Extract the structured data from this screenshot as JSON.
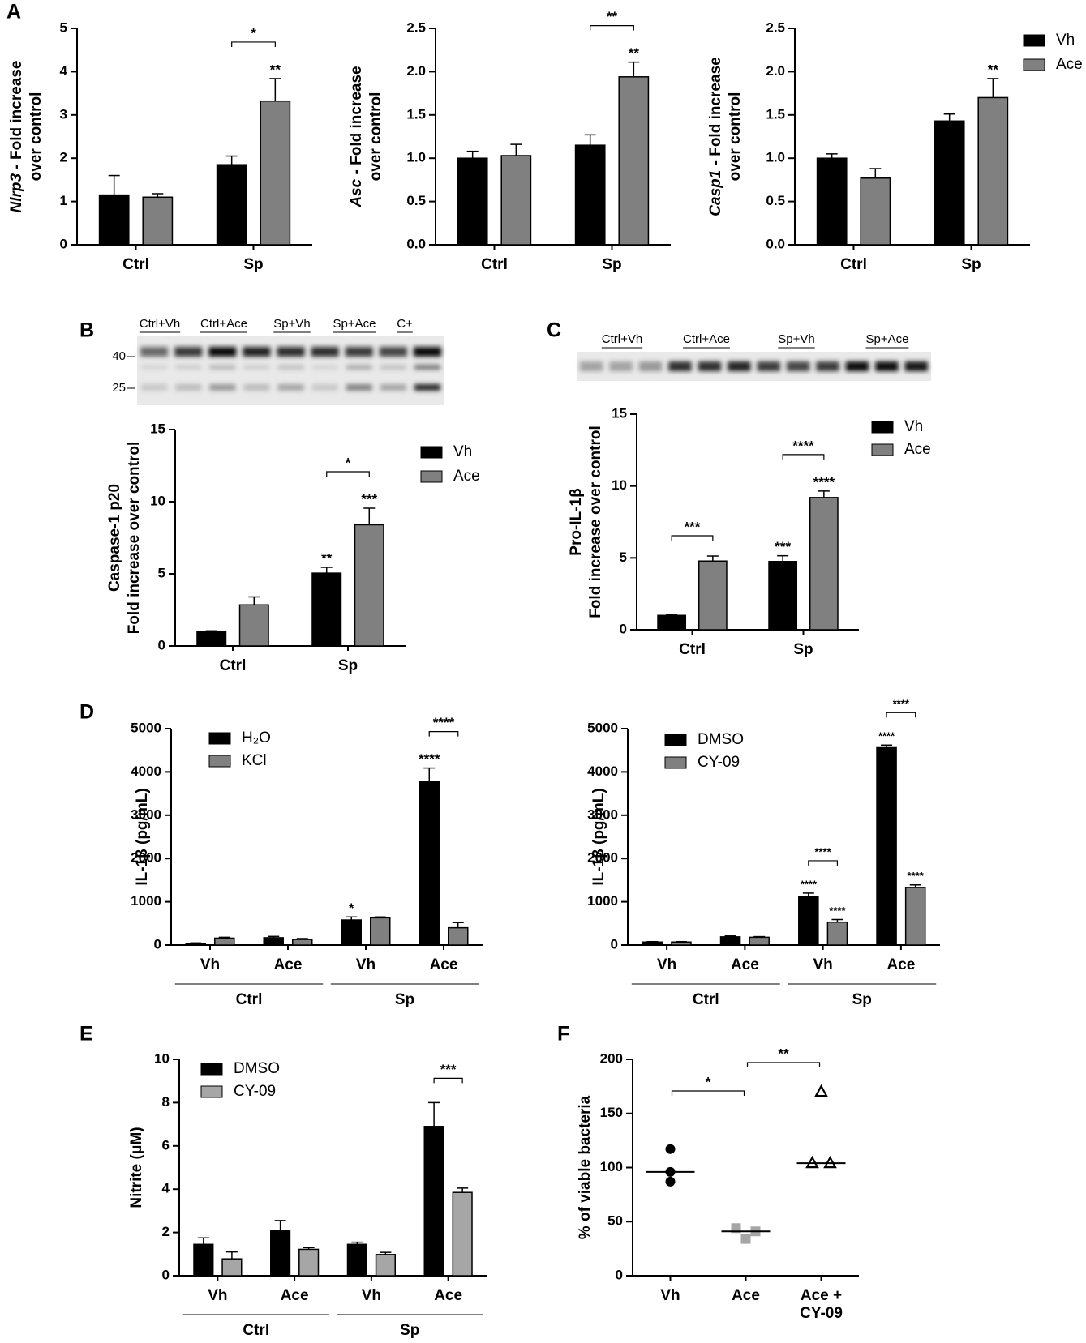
{
  "chart_data": [
    {
      "type": "bar",
      "panel": "A",
      "ylabel": [
        "Nlrp3 - Fold increase",
        "over control"
      ],
      "categories": [
        "Ctrl",
        "Sp"
      ],
      "series": [
        {
          "color": "#000000",
          "values": [
            1.15,
            1.85
          ],
          "errors": [
            0.45,
            0.2
          ]
        },
        {
          "color": "#808080",
          "values": [
            1.1,
            3.32
          ],
          "errors": [
            0.08,
            0.52
          ]
        }
      ],
      "ylim": [
        0,
        5
      ],
      "yticks": [
        0,
        1,
        2,
        3,
        4,
        5
      ],
      "annotations": [
        "*",
        "**"
      ]
    },
    {
      "type": "bar",
      "ylabel": [
        "Asc - Fold increase",
        "over control"
      ],
      "categories": [
        "Ctrl",
        "Sp"
      ],
      "series": [
        {
          "color": "#000000",
          "values": [
            1.0,
            1.15
          ],
          "errors": [
            0.08,
            0.12
          ]
        },
        {
          "color": "#808080",
          "values": [
            1.03,
            1.94
          ],
          "errors": [
            0.13,
            0.17
          ]
        }
      ],
      "ylim": [
        0,
        2.5
      ],
      "yticks": [
        {
          "value": 0,
          "label": "0.0"
        },
        0.5,
        {
          "value": 1,
          "label": "1.0"
        },
        1.5,
        {
          "value": 2,
          "label": "2.0"
        },
        2.5
      ],
      "annotations": [
        "**",
        "**"
      ]
    },
    {
      "type": "bar",
      "ylabel": [
        "Casp1 - Fold increase",
        "over control"
      ],
      "categories": [
        "Ctrl",
        "Sp"
      ],
      "series": [
        {
          "name": "Vh",
          "color": "#000000",
          "values": [
            1.0,
            1.43
          ],
          "errors": [
            0.05,
            0.08
          ]
        },
        {
          "name": "Ace",
          "color": "#808080",
          "values": [
            0.77,
            1.7
          ],
          "errors": [
            0.11,
            0.22
          ]
        }
      ],
      "ylim": [
        0,
        2.5
      ],
      "yticks": [
        {
          "value": 0,
          "label": "0.0"
        },
        0.5,
        {
          "value": 1,
          "label": "1.0"
        },
        1.5,
        {
          "value": 2,
          "label": "2.0"
        },
        2.5
      ],
      "annotations": [
        "**"
      ]
    },
    {
      "type": "bar",
      "panel": "B",
      "blot": {
        "lanes": [
          "Ctrl+Vh",
          "Ctrl+Ace",
          "Sp+Vh",
          "Sp+Ace",
          "C+"
        ],
        "markers": [
          "40",
          "25"
        ]
      },
      "ylabel": [
        "Caspase-1 p20",
        "Fold increase over control"
      ],
      "categories": [
        "Ctrl",
        "Sp"
      ],
      "series": [
        {
          "name": "Vh",
          "color": "#000000",
          "values": [
            1.0,
            5.05
          ],
          "errors": [
            0.05,
            0.4
          ]
        },
        {
          "name": "Ace",
          "color": "#808080",
          "values": [
            2.85,
            8.4
          ],
          "errors": [
            0.55,
            1.15
          ]
        }
      ],
      "ylim": [
        0,
        15
      ],
      "yticks": [
        0,
        5,
        10,
        15
      ],
      "annotations": [
        "**",
        "***",
        "*"
      ]
    },
    {
      "type": "bar",
      "panel": "C",
      "blot": {
        "lanes": [
          "Ctrl+Vh",
          "Ctrl+Ace",
          "Sp+Vh",
          "Sp+Ace"
        ]
      },
      "ylabel": [
        "Pro-IL-1β",
        "Fold increase over control"
      ],
      "categories": [
        "Ctrl",
        "Sp"
      ],
      "series": [
        {
          "name": "Vh",
          "color": "#000000",
          "values": [
            1.0,
            4.75
          ],
          "errors": [
            0.05,
            0.4
          ]
        },
        {
          "name": "Ace",
          "color": "#808080",
          "values": [
            4.78,
            9.2
          ],
          "errors": [
            0.35,
            0.45
          ]
        }
      ],
      "ylim": [
        0,
        15
      ],
      "yticks": [
        0,
        5,
        10,
        15
      ],
      "annotations": [
        "***",
        "****",
        "***",
        "****"
      ]
    },
    {
      "type": "bar",
      "panel": "D",
      "ylabel": [
        "IL-1β (pg/mL)"
      ],
      "categories": [
        "Vh",
        "Ace",
        "Vh",
        "Ace"
      ],
      "groups": [
        "Ctrl",
        "Sp"
      ],
      "series": [
        {
          "name": "H₂O",
          "color": "#000000",
          "values": [
            40,
            170,
            580,
            3770
          ],
          "errors": [
            10,
            30,
            70,
            320
          ]
        },
        {
          "name": "KCl",
          "color": "#808080",
          "values": [
            160,
            130,
            630,
            400
          ],
          "errors": [
            20,
            20,
            20,
            120
          ]
        }
      ],
      "ylim": [
        0,
        5000
      ],
      "yticks": [
        0,
        1000,
        2000,
        3000,
        4000,
        5000
      ],
      "annotations": [
        "*",
        "****",
        "****"
      ]
    },
    {
      "type": "bar",
      "ylabel": [
        "IL-1β (pg/mL)"
      ],
      "categories": [
        "Vh",
        "Ace",
        "Vh",
        "Ace"
      ],
      "groups": [
        "Ctrl",
        "Sp"
      ],
      "series": [
        {
          "name": "DMSO",
          "color": "#000000",
          "values": [
            70,
            190,
            1120,
            4560
          ],
          "errors": [
            10,
            20,
            80,
            60
          ]
        },
        {
          "name": "CY-09",
          "color": "#808080",
          "values": [
            70,
            180,
            530,
            1330
          ],
          "errors": [
            10,
            15,
            60,
            60
          ]
        }
      ],
      "ylim": [
        0,
        5000
      ],
      "yticks": [
        0,
        1000,
        2000,
        3000,
        4000,
        5000
      ],
      "annotations": [
        "****",
        "****",
        "****",
        "****",
        "****",
        "****"
      ]
    },
    {
      "type": "bar",
      "panel": "E",
      "ylabel": [
        "Nitrite (μM)"
      ],
      "categories": [
        "Vh",
        "Ace",
        "Vh",
        "Ace"
      ],
      "groups": [
        "Ctrl",
        "Sp"
      ],
      "series": [
        {
          "name": "DMSO",
          "color": "#000000",
          "values": [
            1.45,
            2.1,
            1.45,
            6.9
          ],
          "errors": [
            0.3,
            0.45,
            0.1,
            1.1
          ]
        },
        {
          "name": "CY-09",
          "color": "#a6a6a6",
          "values": [
            0.78,
            1.22,
            0.98,
            3.85
          ],
          "errors": [
            0.32,
            0.08,
            0.1,
            0.2
          ]
        }
      ],
      "ylim": [
        0,
        10
      ],
      "yticks": [
        0,
        2,
        4,
        6,
        8,
        10
      ],
      "annotations": [
        "***"
      ]
    },
    {
      "type": "scatter",
      "panel": "F",
      "ylabel": [
        "% of viable bacteria"
      ],
      "categories": [
        "Vh",
        "Ace",
        [
          "Ace +",
          "CY-09"
        ]
      ],
      "points": [
        [
          117,
          96,
          87
        ],
        [
          44,
          41,
          34
        ],
        [
          170,
          104,
          104
        ]
      ],
      "medians": [
        96,
        41,
        104
      ],
      "colors": [
        "#000000",
        "#a6a6a6",
        "#000000"
      ],
      "ylim": [
        0,
        200
      ],
      "yticks": [
        0,
        50,
        100,
        150,
        200
      ],
      "annotations": [
        "*",
        "**"
      ]
    }
  ]
}
